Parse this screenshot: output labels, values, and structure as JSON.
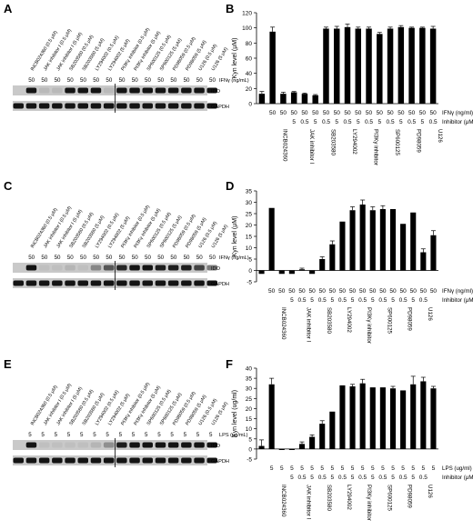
{
  "panels": {
    "A": {
      "letter": "A",
      "lanes": [
        "INCB024360 (0.5 μM)",
        "JAK inhibitor I (0.5 μM)",
        "JAK inhibitor I (5 μM)",
        "SB203580 (0.5 μM)",
        "SB203580 (5 μM)",
        "LY294002 (0.5 μM)",
        "LY294002 (5 μM)",
        "PI3Kγ inhibitor (0.5 μM)",
        "PI3Kγ inhibitor (5 μM)",
        "SP600125 (0.5 μM)",
        "SP600125 (5 μM)",
        "PD98059 (0.5 μM)",
        "PD98059 (5 μM)",
        "U126 (0.5 μM)",
        "U126 (5 μM)"
      ],
      "treatment_row": [
        "",
        "50",
        "50",
        "50",
        "50",
        "50",
        "50",
        "50",
        "50",
        "50",
        "50",
        "50",
        "50",
        "50",
        "50",
        "50"
      ],
      "treatment_label": "IFNγ (ng/mL)",
      "band_labels": [
        "IDO",
        "GAPDH"
      ]
    },
    "C": {
      "letter": "C",
      "lanes": [
        "INCB024360 (0.5 μM)",
        "JAK inhibitor I (0.5 μM)",
        "JAK inhibitor I (5 μM)",
        "SB203580 (0.5 μM)",
        "SB203580 (5 μM)",
        "LY294002 (0.5 μM)",
        "LY294002 (5 μM)",
        "PI3Kγ inhibitor (0.5 μM)",
        "PI3Kγ inhibitor (5 μM)",
        "SP600125 (0.5 μM)",
        "SP600125 (5 μM)",
        "PD98059 (0.5 μM)",
        "PD98059 (5 μM)",
        "U126 (0.5 μM)",
        "U126 (5 μM)"
      ],
      "treatment_row": [
        "",
        "50",
        "50",
        "50",
        "50",
        "50",
        "50",
        "50",
        "50",
        "50",
        "50",
        "50",
        "50",
        "50",
        "50",
        "50"
      ],
      "treatment_label": "IFNγ (ng/mL)",
      "band_labels": [
        "IDO",
        "GAPDH"
      ]
    },
    "E": {
      "letter": "E",
      "lanes": [
        "INCB024360 (0.5 μM)",
        "JAK inhibitor I (0.5 μM)",
        "JAK inhibitor I (5 μM)",
        "SB203580 (0.5 μM)",
        "SB203580 (5 μM)",
        "LY294002 (0.5 μM)",
        "LY294002 (5 μM)",
        "PI3Kγ inhibitor (0.5 μM)",
        "PI3Kγ inhibitor (5 μM)",
        "SP600125 (0.5 μM)",
        "SP600125 (5 μM)",
        "PD98059 (0.5 μM)",
        "PD98059 (5 μM)",
        "U126 (0.5 μM)",
        "U126 (5 μM)"
      ],
      "treatment_row": [
        "",
        "5",
        "5",
        "5",
        "5",
        "5",
        "5",
        "5",
        "5",
        "5",
        "5",
        "5",
        "5",
        "5",
        "5",
        "5"
      ],
      "treatment_label": "LPS (μg/mL)",
      "band_labels": [
        "IDO",
        "GAPDH"
      ]
    },
    "B": {
      "letter": "B"
    },
    "D": {
      "letter": "D"
    },
    "F": {
      "letter": "F"
    }
  },
  "chart_data": [
    {
      "panel": "B",
      "type": "bar",
      "ylabel": "Kyn level (μM)",
      "ylim": [
        0,
        120
      ],
      "yticks": [
        0,
        20,
        40,
        60,
        80,
        100,
        120
      ],
      "values": [
        13,
        95,
        13,
        15,
        13,
        11,
        99,
        99,
        101,
        99,
        99,
        92,
        99,
        101,
        100,
        100,
        99
      ],
      "errors": [
        3,
        6,
        2,
        1,
        1,
        1,
        2,
        3,
        4,
        2,
        2,
        2,
        2,
        2,
        1,
        1,
        3
      ],
      "treatment_row": [
        "",
        "50",
        "50",
        "50",
        "50",
        "50",
        "50",
        "50",
        "50",
        "50",
        "50",
        "50",
        "50",
        "50",
        "50",
        "50",
        "50"
      ],
      "inhibitor_row": [
        "",
        "",
        "",
        "5",
        "0.5",
        "5",
        "0.5",
        "5",
        "0.5",
        "5",
        "0.5",
        "5",
        "0.5",
        "5",
        "0.5",
        "5",
        "0.5"
      ],
      "treatment_label": "IFNγ (ng/ml)",
      "inhibitor_label": "Inhibitor (μM)",
      "groups": [
        "INCB024360",
        "JAK inhibitor I",
        "SB203580",
        "LY294002",
        "PI3Kγ inhibitor",
        "SP600125",
        "PD98059",
        "U126"
      ]
    },
    {
      "panel": "D",
      "type": "bar",
      "ylabel": "Kyn level (μM)",
      "ylim": [
        -5,
        35
      ],
      "yticks": [
        -5,
        0,
        5,
        10,
        15,
        20,
        25,
        30,
        35
      ],
      "values": [
        -1.5,
        27.5,
        -1.5,
        -1.5,
        0.5,
        -1.5,
        5,
        11.5,
        21.5,
        26.5,
        29,
        26.5,
        27,
        27,
        20.5,
        25.5,
        8,
        15.5
      ],
      "errors": [
        0,
        0,
        0,
        0,
        0.5,
        0,
        1,
        1.5,
        0,
        1.5,
        2,
        1.5,
        1.5,
        0,
        0,
        0,
        1.5,
        2
      ],
      "treatment_row": [
        "",
        "50",
        "50",
        "50",
        "50",
        "50",
        "50",
        "50",
        "50",
        "50",
        "50",
        "50",
        "50",
        "50",
        "50",
        "50",
        "50",
        "50"
      ],
      "inhibitor_row": [
        "",
        "",
        "",
        "5",
        "0.5",
        "5",
        "0.5",
        "5",
        "0.5",
        "5",
        "0.5",
        "5",
        "0.5",
        "5",
        "0.5",
        "5",
        "0.5",
        ""
      ],
      "treatment_label": "IFNγ (ng/ml)",
      "inhibitor_label": "Inhibitor (μM)",
      "groups": [
        "INCB024360",
        "JAK inhibitor I",
        "SB203580",
        "LY294002",
        "PI3Kγ inhibitor",
        "SP600125",
        "PD98059",
        "U126"
      ]
    },
    {
      "panel": "F",
      "type": "bar",
      "ylabel": "Kyn level (ug/ml)",
      "ylim": [
        -5,
        40
      ],
      "yticks": [
        -5,
        0,
        5,
        10,
        15,
        20,
        25,
        30,
        35,
        40
      ],
      "values": [
        1.5,
        32,
        -0.5,
        -0.5,
        2.5,
        6,
        12.5,
        18.5,
        31.5,
        31,
        32.5,
        30.5,
        30.5,
        30,
        29,
        32,
        33.5,
        30
      ],
      "errors": [
        3,
        3,
        0,
        0,
        1,
        1,
        1.5,
        0,
        0,
        1,
        2,
        0,
        0,
        1,
        0,
        4,
        2,
        1
      ],
      "treatment_row": [
        "",
        "5",
        "5",
        "5",
        "5",
        "5",
        "5",
        "5",
        "5",
        "5",
        "5",
        "5",
        "5",
        "5",
        "5",
        "5",
        "5",
        "5"
      ],
      "inhibitor_row": [
        "",
        "",
        "",
        "5",
        "0.5",
        "5",
        "0.5",
        "5",
        "0.5",
        "5",
        "0.5",
        "5",
        "0.5",
        "5",
        "0.5",
        "5",
        "0.5",
        ""
      ],
      "treatment_label": "LPS (ug/ml)",
      "inhibitor_label": "Inhibitor (μM)",
      "groups": [
        "INCB024360",
        "JAK inhibitor I",
        "SB203580",
        "LY294002",
        "PI3Kγ inhibitor",
        "SP600125",
        "PD98059",
        "U126"
      ]
    }
  ]
}
